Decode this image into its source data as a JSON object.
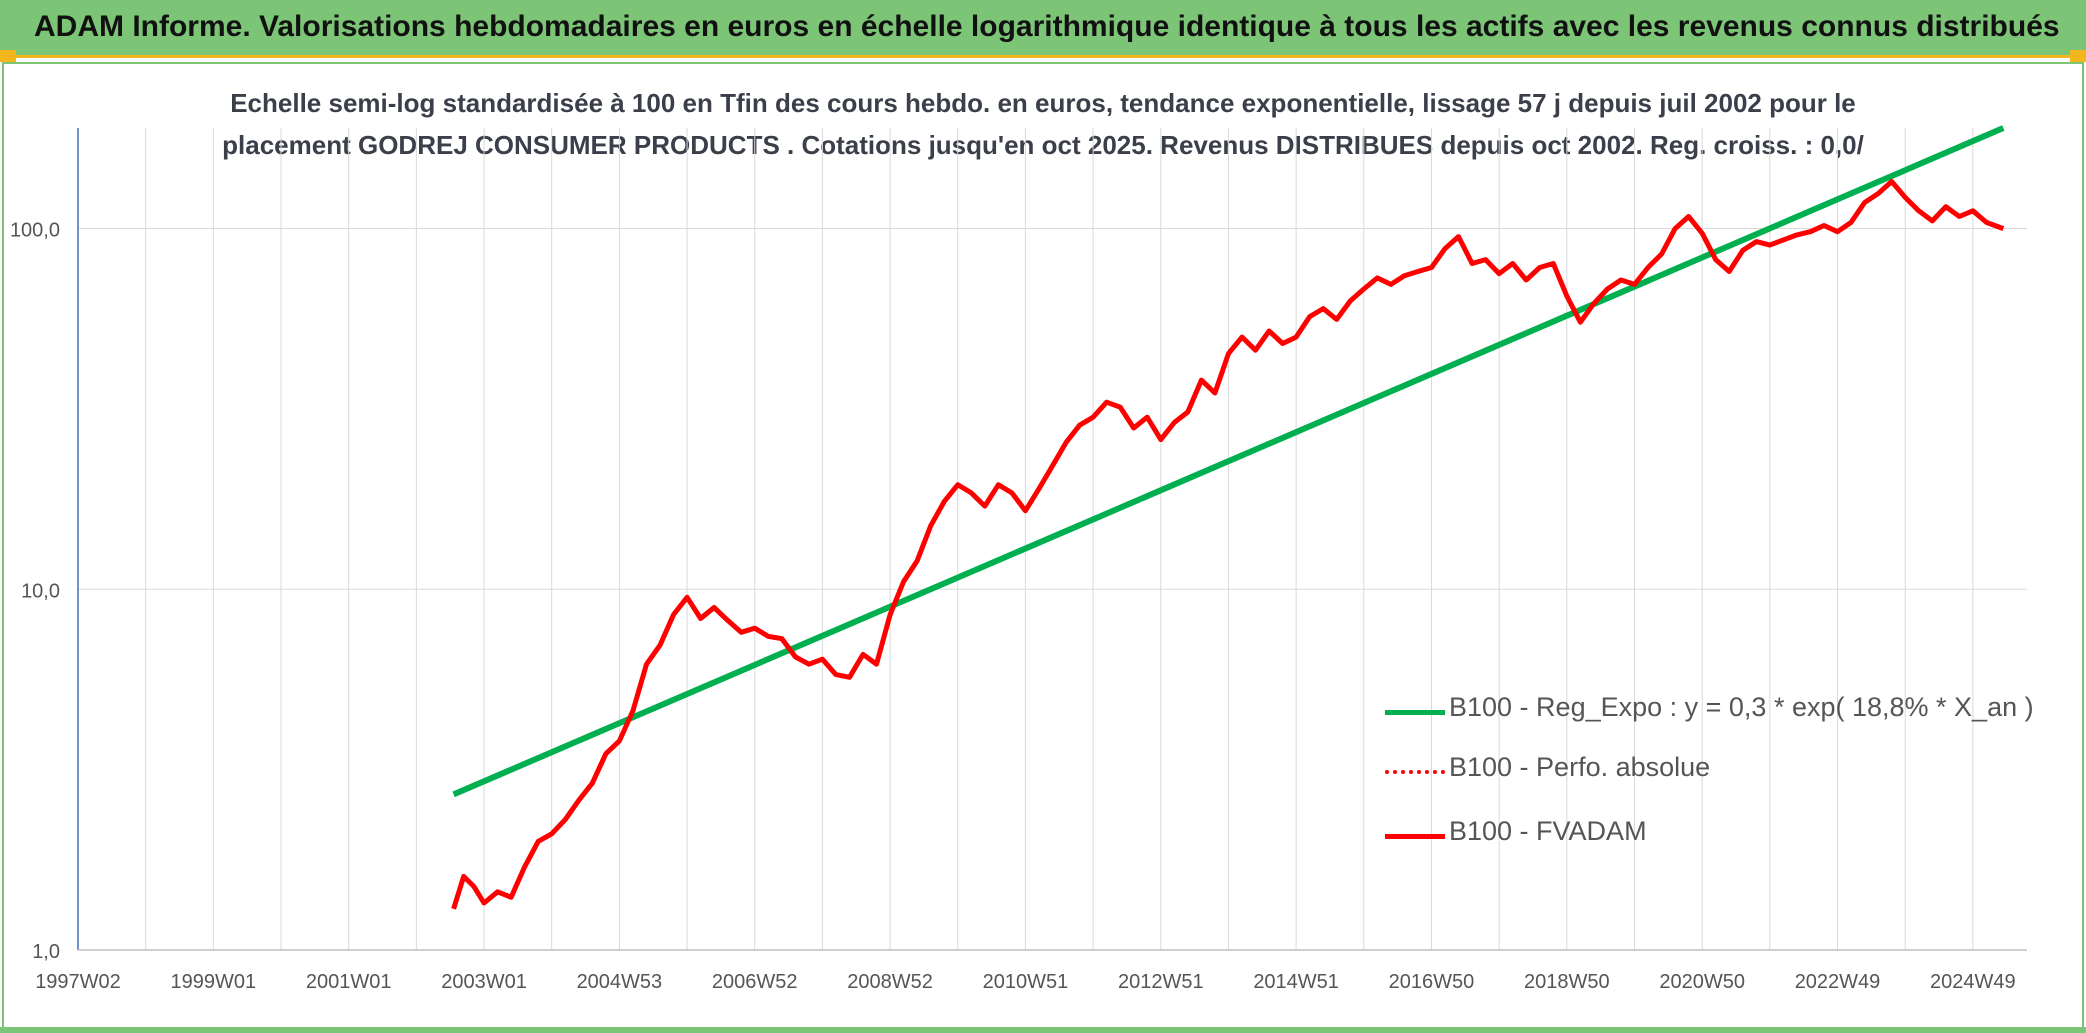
{
  "header": {
    "title": "ADAM Informe. Valorisations hebdomadaires en euros en échelle logarithmique identique à tous les actifs avec les revenus connus distribués"
  },
  "colors": {
    "header_bg": "#7cc576",
    "accent": "#f3b71d",
    "trend": "#00b050",
    "series": "#ff0000"
  },
  "chart_data": {
    "type": "line",
    "title_line1": "Echelle semi-log standardisée à 100 en Tfin des cours hebdo. en euros, tendance exponentielle, lissage 57 j depuis juil 2002 pour le",
    "title_line2": "placement GODREJ CONSUMER PRODUCTS . Cotations jusqu'en oct 2025. Revenus DISTRIBUES depuis oct 2002. Reg. croiss. : 0,0/",
    "y_scale": "log",
    "ylim": [
      1,
      190
    ],
    "y_ticks": [
      "100,0",
      "10,0",
      "1,0"
    ],
    "y_tick_values": [
      100,
      10,
      1
    ],
    "xlim": [
      1997.0,
      2025.8
    ],
    "x_ticks": [
      "1997W02",
      "1999W01",
      "2001W01",
      "2003W01",
      "2004W53",
      "2006W52",
      "2008W52",
      "2010W51",
      "2012W51",
      "2014W51",
      "2016W50",
      "2018W50",
      "2020W50",
      "2022W49",
      "2024W49"
    ],
    "x_tick_values": [
      1997,
      1999,
      2001,
      2003,
      2005,
      2007,
      2009,
      2011,
      2013,
      2015,
      2017,
      2019,
      2021,
      2023,
      2025
    ],
    "grid": true,
    "legend_position": "bottom-right",
    "series": [
      {
        "name": "B100 - Reg_Expo : y = 0,3 * exp( 18,8% *  X_an )",
        "style": "solid-green",
        "x": [
          2002.55,
          2025.45
        ],
        "y": [
          2.7,
          190
        ]
      },
      {
        "name": "B100 - Perfo. absolue",
        "style": "dotted-red",
        "x": [],
        "y": []
      },
      {
        "name": "B100 - FVADAM",
        "style": "solid-red",
        "x": [
          2002.55,
          2002.7,
          2002.85,
          2003.0,
          2003.2,
          2003.4,
          2003.6,
          2003.8,
          2004.0,
          2004.2,
          2004.4,
          2004.6,
          2004.8,
          2005.0,
          2005.2,
          2005.4,
          2005.6,
          2005.8,
          2006.0,
          2006.2,
          2006.4,
          2006.6,
          2006.8,
          2007.0,
          2007.2,
          2007.4,
          2007.6,
          2007.8,
          2008.0,
          2008.2,
          2008.4,
          2008.6,
          2008.8,
          2009.0,
          2009.2,
          2009.4,
          2009.6,
          2009.8,
          2010.0,
          2010.2,
          2010.4,
          2010.6,
          2010.8,
          2011.0,
          2011.2,
          2011.4,
          2011.6,
          2011.8,
          2012.0,
          2012.2,
          2012.4,
          2012.6,
          2012.8,
          2013.0,
          2013.2,
          2013.4,
          2013.6,
          2013.8,
          2014.0,
          2014.2,
          2014.4,
          2014.6,
          2014.8,
          2015.0,
          2015.2,
          2015.4,
          2015.6,
          2015.8,
          2016.0,
          2016.2,
          2016.4,
          2016.6,
          2016.8,
          2017.0,
          2017.2,
          2017.4,
          2017.6,
          2017.8,
          2018.0,
          2018.2,
          2018.4,
          2018.6,
          2018.8,
          2019.0,
          2019.2,
          2019.4,
          2019.6,
          2019.8,
          2020.0,
          2020.2,
          2020.4,
          2020.6,
          2020.8,
          2021.0,
          2021.2,
          2021.4,
          2021.6,
          2021.8,
          2022.0,
          2022.2,
          2022.4,
          2022.6,
          2022.8,
          2023.0,
          2023.2,
          2023.4,
          2023.6,
          2023.8,
          2024.0,
          2024.2,
          2024.4,
          2024.6,
          2024.8,
          2025.0,
          2025.2,
          2025.45
        ],
        "y": [
          1.3,
          1.6,
          1.5,
          1.35,
          1.45,
          1.4,
          1.7,
          2.0,
          2.1,
          2.3,
          2.6,
          2.9,
          3.5,
          3.8,
          4.6,
          6.2,
          7.0,
          8.5,
          9.5,
          8.3,
          8.9,
          8.2,
          7.6,
          7.8,
          7.4,
          7.3,
          6.5,
          6.2,
          6.4,
          5.8,
          5.7,
          6.6,
          6.2,
          8.5,
          10.5,
          12.0,
          15.0,
          17.5,
          19.5,
          18.5,
          17.0,
          19.5,
          18.5,
          16.5,
          19.0,
          22.0,
          25.5,
          28.5,
          30.0,
          33.0,
          32.0,
          28.0,
          30.0,
          26.0,
          29.0,
          31.0,
          38.0,
          35.0,
          45.0,
          50.0,
          46.0,
          52.0,
          48.0,
          50.0,
          57.0,
          60.0,
          56.0,
          63.0,
          68.0,
          73.0,
          70.0,
          74.0,
          76.0,
          78.0,
          88.0,
          95.0,
          80.0,
          82.0,
          75.0,
          80.0,
          72.0,
          78.0,
          80.0,
          65.0,
          55.0,
          62.0,
          68.0,
          72.0,
          70.0,
          78.0,
          85.0,
          100.0,
          108.0,
          97.0,
          82.0,
          76.0,
          87.0,
          92.0,
          90.0,
          93.0,
          96.0,
          98.0,
          102.0,
          98.0,
          104.0,
          118.0,
          125.0,
          135.0,
          122.0,
          112.0,
          105.0,
          115.0,
          108.0,
          112.0,
          104.0,
          100.0
        ]
      }
    ]
  }
}
